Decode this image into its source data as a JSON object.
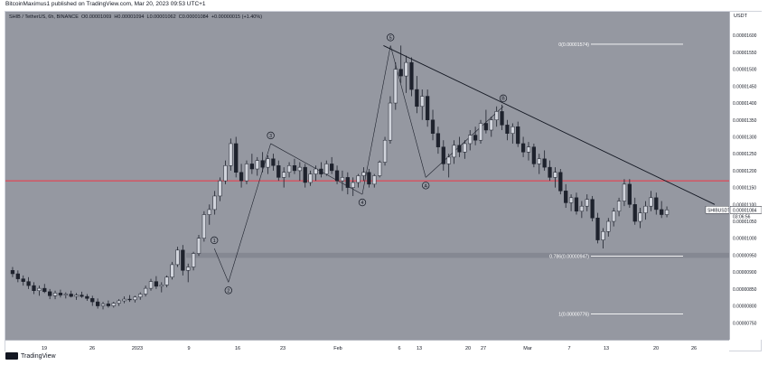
{
  "header": {
    "publish_line": "BitcoinMaximus1 published on TradingView.com, Mar 20, 2023 09:53 UTC+1"
  },
  "legend": {
    "symbol_line": "SHIB / TetherUS, 6h, BINANCE",
    "open_label": "O",
    "open_value": "0.00001069",
    "high_label": "H",
    "high_value": "0.00001094",
    "low_label": "L",
    "low_value": "0.00001062",
    "close_label": "C",
    "close_value": "0.00001084",
    "change": "+0.00000015 (+1.40%)"
  },
  "price_axis": {
    "currency": "USDT",
    "ticks": [
      "0.00001600",
      "0.00001550",
      "0.00001500",
      "0.00001450",
      "0.00001400",
      "0.00001350",
      "0.00001300",
      "0.00001250",
      "0.00001200",
      "0.00001150",
      "0.00001100",
      "0.00001050",
      "0.00001000",
      "0.00000950",
      "0.00000900",
      "0.00000850",
      "0.00000800",
      "0.00000750"
    ],
    "last_symbol": "SHIBUSDT",
    "last_price": "0.00001084",
    "countdown": "03:06:56"
  },
  "time_axis": {
    "ticks": [
      "19",
      "26",
      "2023",
      "9",
      "16",
      "23",
      "Feb",
      "6",
      "13",
      "20",
      "27",
      "Mar",
      "7",
      "13",
      "20",
      "26"
    ]
  },
  "colors": {
    "plot_bg": "#9598a1",
    "candle_body": "#1e222d",
    "wick": "#1e222d",
    "horizontal_line": "#f23645",
    "trend_line": "#131722",
    "fib_line": "#ffffff",
    "zone": "#787b86"
  },
  "annotations": {
    "wave_labels": [
      "1",
      "2",
      "3",
      "4",
      "5",
      "A",
      "B"
    ],
    "fib_top": "0(0.00001574)",
    "fib_mid": "0.786(0.00000947)",
    "fib_bottom": "1(0.00000776)"
  },
  "chart_data": {
    "type": "candlestick",
    "title": "SHIB / TetherUS, 6h, BINANCE",
    "ylim": [
      7e-06,
      1.67e-05
    ],
    "grid": false,
    "horizontal_lines": [
      {
        "price": 1.17e-05,
        "color": "#f23645"
      }
    ],
    "support_zone": {
      "from": 9.42e-06,
      "to": 9.57e-06
    },
    "fib_levels": [
      {
        "label": "0(0.00001574)",
        "price": 1.574e-05
      },
      {
        "label": "0.786(0.00000947)",
        "price": 9.47e-06
      },
      {
        "label": "1(0.00000776)",
        "price": 7.76e-06
      }
    ],
    "trend_line": {
      "from": [
        "Feb 3",
        1.57e-05
      ],
      "to": [
        "Mar 22",
        1.1e-05
      ]
    },
    "wave_points": [
      {
        "label": "1",
        "date": "Jan 10",
        "price": 9.7e-06
      },
      {
        "label": "2",
        "date": "Jan 12",
        "price": 8.7e-06
      },
      {
        "label": "3",
        "date": "Jan 18",
        "price": 1.28e-05
      },
      {
        "label": "4",
        "date": "Jan 31",
        "price": 1.13e-05
      },
      {
        "label": "5",
        "date": "Feb 4",
        "price": 1.57e-05
      },
      {
        "label": "A",
        "date": "Feb 9",
        "price": 1.18e-05
      },
      {
        "label": "B",
        "date": "Feb 20",
        "price": 1.39e-05
      }
    ],
    "candles": [
      [
        9.05e-06,
        9.15e-06,
        8.85e-06,
        8.95e-06
      ],
      [
        8.95e-06,
        9.05e-06,
        8.7e-06,
        8.8e-06
      ],
      [
        8.8e-06,
        8.9e-06,
        8.6e-06,
        8.72e-06
      ],
      [
        8.72e-06,
        8.85e-06,
        8.5e-06,
        8.6e-06
      ],
      [
        8.6e-06,
        8.7e-06,
        8.35e-06,
        8.45e-06
      ],
      [
        8.45e-06,
        8.6e-06,
        8.3e-06,
        8.52e-06
      ],
      [
        8.52e-06,
        8.65e-06,
        8.38e-06,
        8.42e-06
      ],
      [
        8.42e-06,
        8.5e-06,
        8.2e-06,
        8.3e-06
      ],
      [
        8.3e-06,
        8.45e-06,
        8.2e-06,
        8.38e-06
      ],
      [
        8.38e-06,
        8.48e-06,
        8.25e-06,
        8.32e-06
      ],
      [
        8.32e-06,
        8.4e-06,
        8.22e-06,
        8.35e-06
      ],
      [
        8.35e-06,
        8.45e-06,
        8.25e-06,
        8.28e-06
      ],
      [
        8.28e-06,
        8.38e-06,
        8.18e-06,
        8.32e-06
      ],
      [
        8.32e-06,
        8.42e-06,
        8.24e-06,
        8.28e-06
      ],
      [
        8.28e-06,
        8.35e-06,
        8.15e-06,
        8.22e-06
      ],
      [
        8.22e-06,
        8.3e-06,
        8e-06,
        8.12e-06
      ],
      [
        8.12e-06,
        8.22e-06,
        7.92e-06,
        8e-06
      ],
      [
        8e-06,
        8.12e-06,
        7.9e-06,
        8.06e-06
      ],
      [
        8.06e-06,
        8.16e-06,
        7.95e-06,
        8e-06
      ],
      [
        8e-06,
        8.12e-06,
        7.95e-06,
        8.08e-06
      ],
      [
        8.08e-06,
        8.2e-06,
        8e-06,
        8.15e-06
      ],
      [
        8.15e-06,
        8.28e-06,
        8.08e-06,
        8.2e-06
      ],
      [
        8.2e-06,
        8.32e-06,
        8.12e-06,
        8.18e-06
      ],
      [
        8.18e-06,
        8.3e-06,
        8.1e-06,
        8.26e-06
      ],
      [
        8.26e-06,
        8.4e-06,
        8.18e-06,
        8.35e-06
      ],
      [
        8.35e-06,
        8.6e-06,
        8.28e-06,
        8.52e-06
      ],
      [
        8.52e-06,
        8.8e-06,
        8.45e-06,
        8.72e-06
      ],
      [
        8.72e-06,
        8.88e-06,
        8.5e-06,
        8.58e-06
      ],
      [
        8.58e-06,
        8.7e-06,
        8.4e-06,
        8.62e-06
      ],
      [
        8.62e-06,
        8.9e-06,
        8.55e-06,
        8.85e-06
      ],
      [
        8.85e-06,
        9.3e-06,
        8.78e-06,
        9.22e-06
      ],
      [
        9.22e-06,
        9.75e-06,
        9.15e-06,
        9.65e-06
      ],
      [
        9.65e-06,
        9.8e-06,
        8.9e-06,
        9.05e-06
      ],
      [
        9.05e-06,
        9.25e-06,
        8.7e-06,
        9.15e-06
      ],
      [
        9.15e-06,
        9.6e-06,
        9.05e-06,
        9.55e-06
      ],
      [
        9.55e-06,
        1.01e-05,
        9.48e-06,
        1e-05
      ],
      [
        1e-05,
        1.08e-05,
        9.9e-06,
        1.07e-05
      ],
      [
        1.07e-05,
        1.1e-05,
        1.04e-05,
        1.085e-05
      ],
      [
        1.085e-05,
        1.14e-05,
        1.07e-05,
        1.125e-05
      ],
      [
        1.125e-05,
        1.18e-05,
        1.11e-05,
        1.17e-05
      ],
      [
        1.17e-05,
        1.23e-05,
        1.16e-05,
        1.215e-05
      ],
      [
        1.215e-05,
        1.295e-05,
        1.2e-05,
        1.28e-05
      ],
      [
        1.28e-05,
        1.3e-05,
        1.18e-05,
        1.195e-05
      ],
      [
        1.195e-05,
        1.22e-05,
        1.15e-05,
        1.17e-05
      ],
      [
        1.17e-05,
        1.23e-05,
        1.16e-05,
        1.22e-05
      ],
      [
        1.22e-05,
        1.25e-05,
        1.19e-05,
        1.205e-05
      ],
      [
        1.205e-05,
        1.24e-05,
        1.185e-05,
        1.23e-05
      ],
      [
        1.23e-05,
        1.255e-05,
        1.195e-05,
        1.21e-05
      ],
      [
        1.21e-05,
        1.245e-05,
        1.19e-05,
        1.235e-05
      ],
      [
        1.235e-05,
        1.25e-05,
        1.2e-05,
        1.215e-05
      ],
      [
        1.215e-05,
        1.23e-05,
        1.17e-05,
        1.18e-05
      ],
      [
        1.18e-05,
        1.21e-05,
        1.15e-05,
        1.195e-05
      ],
      [
        1.195e-05,
        1.225e-05,
        1.18e-05,
        1.215e-05
      ],
      [
        1.215e-05,
        1.235e-05,
        1.19e-05,
        1.2e-05
      ],
      [
        1.2e-05,
        1.225e-05,
        1.17e-05,
        1.21e-05
      ],
      [
        1.21e-05,
        1.22e-05,
        1.15e-05,
        1.165e-05
      ],
      [
        1.165e-05,
        1.2e-05,
        1.155e-05,
        1.19e-05
      ],
      [
        1.19e-05,
        1.215e-05,
        1.17e-05,
        1.205e-05
      ],
      [
        1.205e-05,
        1.225e-05,
        1.18e-05,
        1.19e-05
      ],
      [
        1.19e-05,
        1.23e-05,
        1.185e-05,
        1.22e-05
      ],
      [
        1.22e-05,
        1.24e-05,
        1.19e-05,
        1.2e-05
      ],
      [
        1.2e-05,
        1.215e-05,
        1.16e-05,
        1.17e-05
      ],
      [
        1.17e-05,
        1.2e-05,
        1.14e-05,
        1.18e-05
      ],
      [
        1.18e-05,
        1.195e-05,
        1.13e-05,
        1.15e-05
      ],
      [
        1.15e-05,
        1.18e-05,
        1.125e-05,
        1.165e-05
      ],
      [
        1.165e-05,
        1.19e-05,
        1.15e-05,
        1.185e-05
      ],
      [
        1.185e-05,
        1.21e-05,
        1.17e-05,
        1.195e-05
      ],
      [
        1.195e-05,
        1.205e-05,
        1.15e-05,
        1.16e-05
      ],
      [
        1.16e-05,
        1.19e-05,
        1.15e-05,
        1.185e-05
      ],
      [
        1.185e-05,
        1.23e-05,
        1.18e-05,
        1.225e-05
      ],
      [
        1.225e-05,
        1.3e-05,
        1.215e-05,
        1.29e-05
      ],
      [
        1.29e-05,
        1.42e-05,
        1.28e-05,
        1.4e-05
      ],
      [
        1.4e-05,
        1.52e-05,
        1.38e-05,
        1.5e-05
      ],
      [
        1.5e-05,
        1.57e-05,
        1.46e-05,
        1.48e-05
      ],
      [
        1.48e-05,
        1.54e-05,
        1.43e-05,
        1.52e-05
      ],
      [
        1.52e-05,
        1.535e-05,
        1.42e-05,
        1.44e-05
      ],
      [
        1.44e-05,
        1.48e-05,
        1.37e-05,
        1.39e-05
      ],
      [
        1.39e-05,
        1.44e-05,
        1.35e-05,
        1.42e-05
      ],
      [
        1.42e-05,
        1.44e-05,
        1.33e-05,
        1.35e-05
      ],
      [
        1.35e-05,
        1.38e-05,
        1.29e-05,
        1.31e-05
      ],
      [
        1.31e-05,
        1.33e-05,
        1.25e-05,
        1.27e-05
      ],
      [
        1.27e-05,
        1.29e-05,
        1.2e-05,
        1.22e-05
      ],
      [
        1.22e-05,
        1.25e-05,
        1.18e-05,
        1.24e-05
      ],
      [
        1.24e-05,
        1.29e-05,
        1.22e-05,
        1.275e-05
      ],
      [
        1.275e-05,
        1.3e-05,
        1.24e-05,
        1.255e-05
      ],
      [
        1.255e-05,
        1.29e-05,
        1.235e-05,
        1.28e-05
      ],
      [
        1.28e-05,
        1.32e-05,
        1.26e-05,
        1.305e-05
      ],
      [
        1.305e-05,
        1.33e-05,
        1.275e-05,
        1.29e-05
      ],
      [
        1.29e-05,
        1.35e-05,
        1.28e-05,
        1.34e-05
      ],
      [
        1.34e-05,
        1.38e-05,
        1.31e-05,
        1.32e-05
      ],
      [
        1.32e-05,
        1.36e-05,
        1.3e-05,
        1.35e-05
      ],
      [
        1.35e-05,
        1.39e-05,
        1.33e-05,
        1.375e-05
      ],
      [
        1.375e-05,
        1.395e-05,
        1.32e-05,
        1.335e-05
      ],
      [
        1.335e-05,
        1.35e-05,
        1.29e-05,
        1.31e-05
      ],
      [
        1.31e-05,
        1.34e-05,
        1.28e-05,
        1.33e-05
      ],
      [
        1.33e-05,
        1.345e-05,
        1.27e-05,
        1.28e-05
      ],
      [
        1.28e-05,
        1.3e-05,
        1.24e-05,
        1.255e-05
      ],
      [
        1.255e-05,
        1.285e-05,
        1.23e-05,
        1.27e-05
      ],
      [
        1.27e-05,
        1.28e-05,
        1.21e-05,
        1.22e-05
      ],
      [
        1.22e-05,
        1.25e-05,
        1.19e-05,
        1.235e-05
      ],
      [
        1.235e-05,
        1.26e-05,
        1.2e-05,
        1.21e-05
      ],
      [
        1.21e-05,
        1.23e-05,
        1.17e-05,
        1.18e-05
      ],
      [
        1.18e-05,
        1.21e-05,
        1.15e-05,
        1.195e-05
      ],
      [
        1.195e-05,
        1.205e-05,
        1.13e-05,
        1.14e-05
      ],
      [
        1.14e-05,
        1.16e-05,
        1.09e-05,
        1.105e-05
      ],
      [
        1.105e-05,
        1.13e-05,
        1.08e-05,
        1.12e-05
      ],
      [
        1.12e-05,
        1.135e-05,
        1.07e-05,
        1.08e-05
      ],
      [
        1.08e-05,
        1.11e-05,
        1.06e-05,
        1.095e-05
      ],
      [
        1.095e-05,
        1.13e-05,
        1.08e-05,
        1.115e-05
      ],
      [
        1.115e-05,
        1.125e-05,
        1.05e-05,
        1.06e-05
      ],
      [
        1.06e-05,
        1.075e-05,
        9.85e-06,
        9.95e-06
      ],
      [
        9.95e-06,
        1.03e-05,
        9.7e-06,
        1.02e-05
      ],
      [
        1.02e-05,
        1.06e-05,
        1.005e-05,
        1.05e-05
      ],
      [
        1.05e-05,
        1.09e-05,
        1.035e-05,
        1.08e-05
      ],
      [
        1.08e-05,
        1.12e-05,
        1.065e-05,
        1.11e-05
      ],
      [
        1.11e-05,
        1.175e-05,
        1.095e-05,
        1.16e-05
      ],
      [
        1.16e-05,
        1.175e-05,
        1.09e-05,
        1.1e-05
      ],
      [
        1.1e-05,
        1.12e-05,
        1.04e-05,
        1.05e-05
      ],
      [
        1.05e-05,
        1.09e-05,
        1.03e-05,
        1.075e-05
      ],
      [
        1.075e-05,
        1.11e-05,
        1.055e-05,
        1.095e-05
      ],
      [
        1.095e-05,
        1.14e-05,
        1.08e-05,
        1.12e-05
      ],
      [
        1.12e-05,
        1.135e-05,
        1.07e-05,
        1.085e-05
      ],
      [
        1.085e-05,
        1.11e-05,
        1.06e-05,
        1.07e-05
      ],
      [
        1.07e-05,
        1.094e-05,
        1.062e-05,
        1.084e-05
      ]
    ]
  }
}
